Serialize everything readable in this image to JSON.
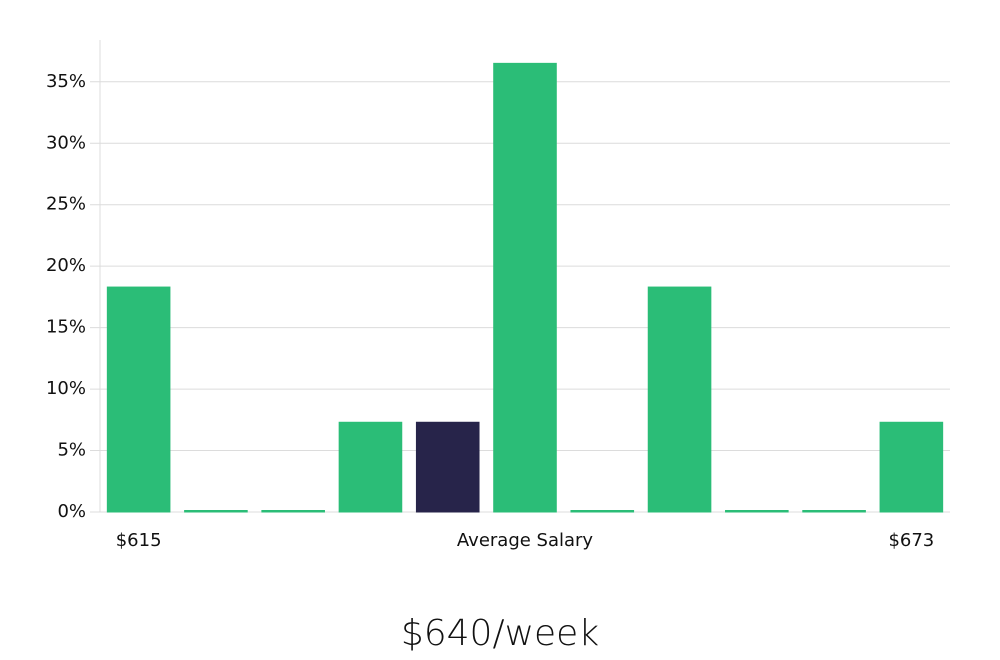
{
  "chart_data": {
    "type": "bar",
    "subtitle": "$640/week",
    "categories": [
      "$615",
      null,
      null,
      null,
      null,
      "Average Salary",
      null,
      null,
      null,
      null,
      "$673"
    ],
    "values": [
      18.3,
      0,
      0,
      7.3,
      7.3,
      36.5,
      0,
      18.3,
      0,
      0,
      7.3
    ],
    "colors": [
      "#2bbd77",
      "#2bbd77",
      "#2bbd77",
      "#2bbd77",
      "#27244a",
      "#2bbd77",
      "#2bbd77",
      "#2bbd77",
      "#2bbd77",
      "#2bbd77",
      "#2bbd77"
    ],
    "ylim": [
      0,
      38.4
    ],
    "yticks": [
      {
        "value": 0,
        "label": "0%"
      },
      {
        "value": 5,
        "label": "5%"
      },
      {
        "value": 10,
        "label": "10%"
      },
      {
        "value": 15,
        "label": "15%"
      },
      {
        "value": 20,
        "label": "20%"
      },
      {
        "value": 25,
        "label": "25%"
      },
      {
        "value": 30,
        "label": "30%"
      },
      {
        "value": 35,
        "label": "35%"
      }
    ],
    "grid": true
  }
}
